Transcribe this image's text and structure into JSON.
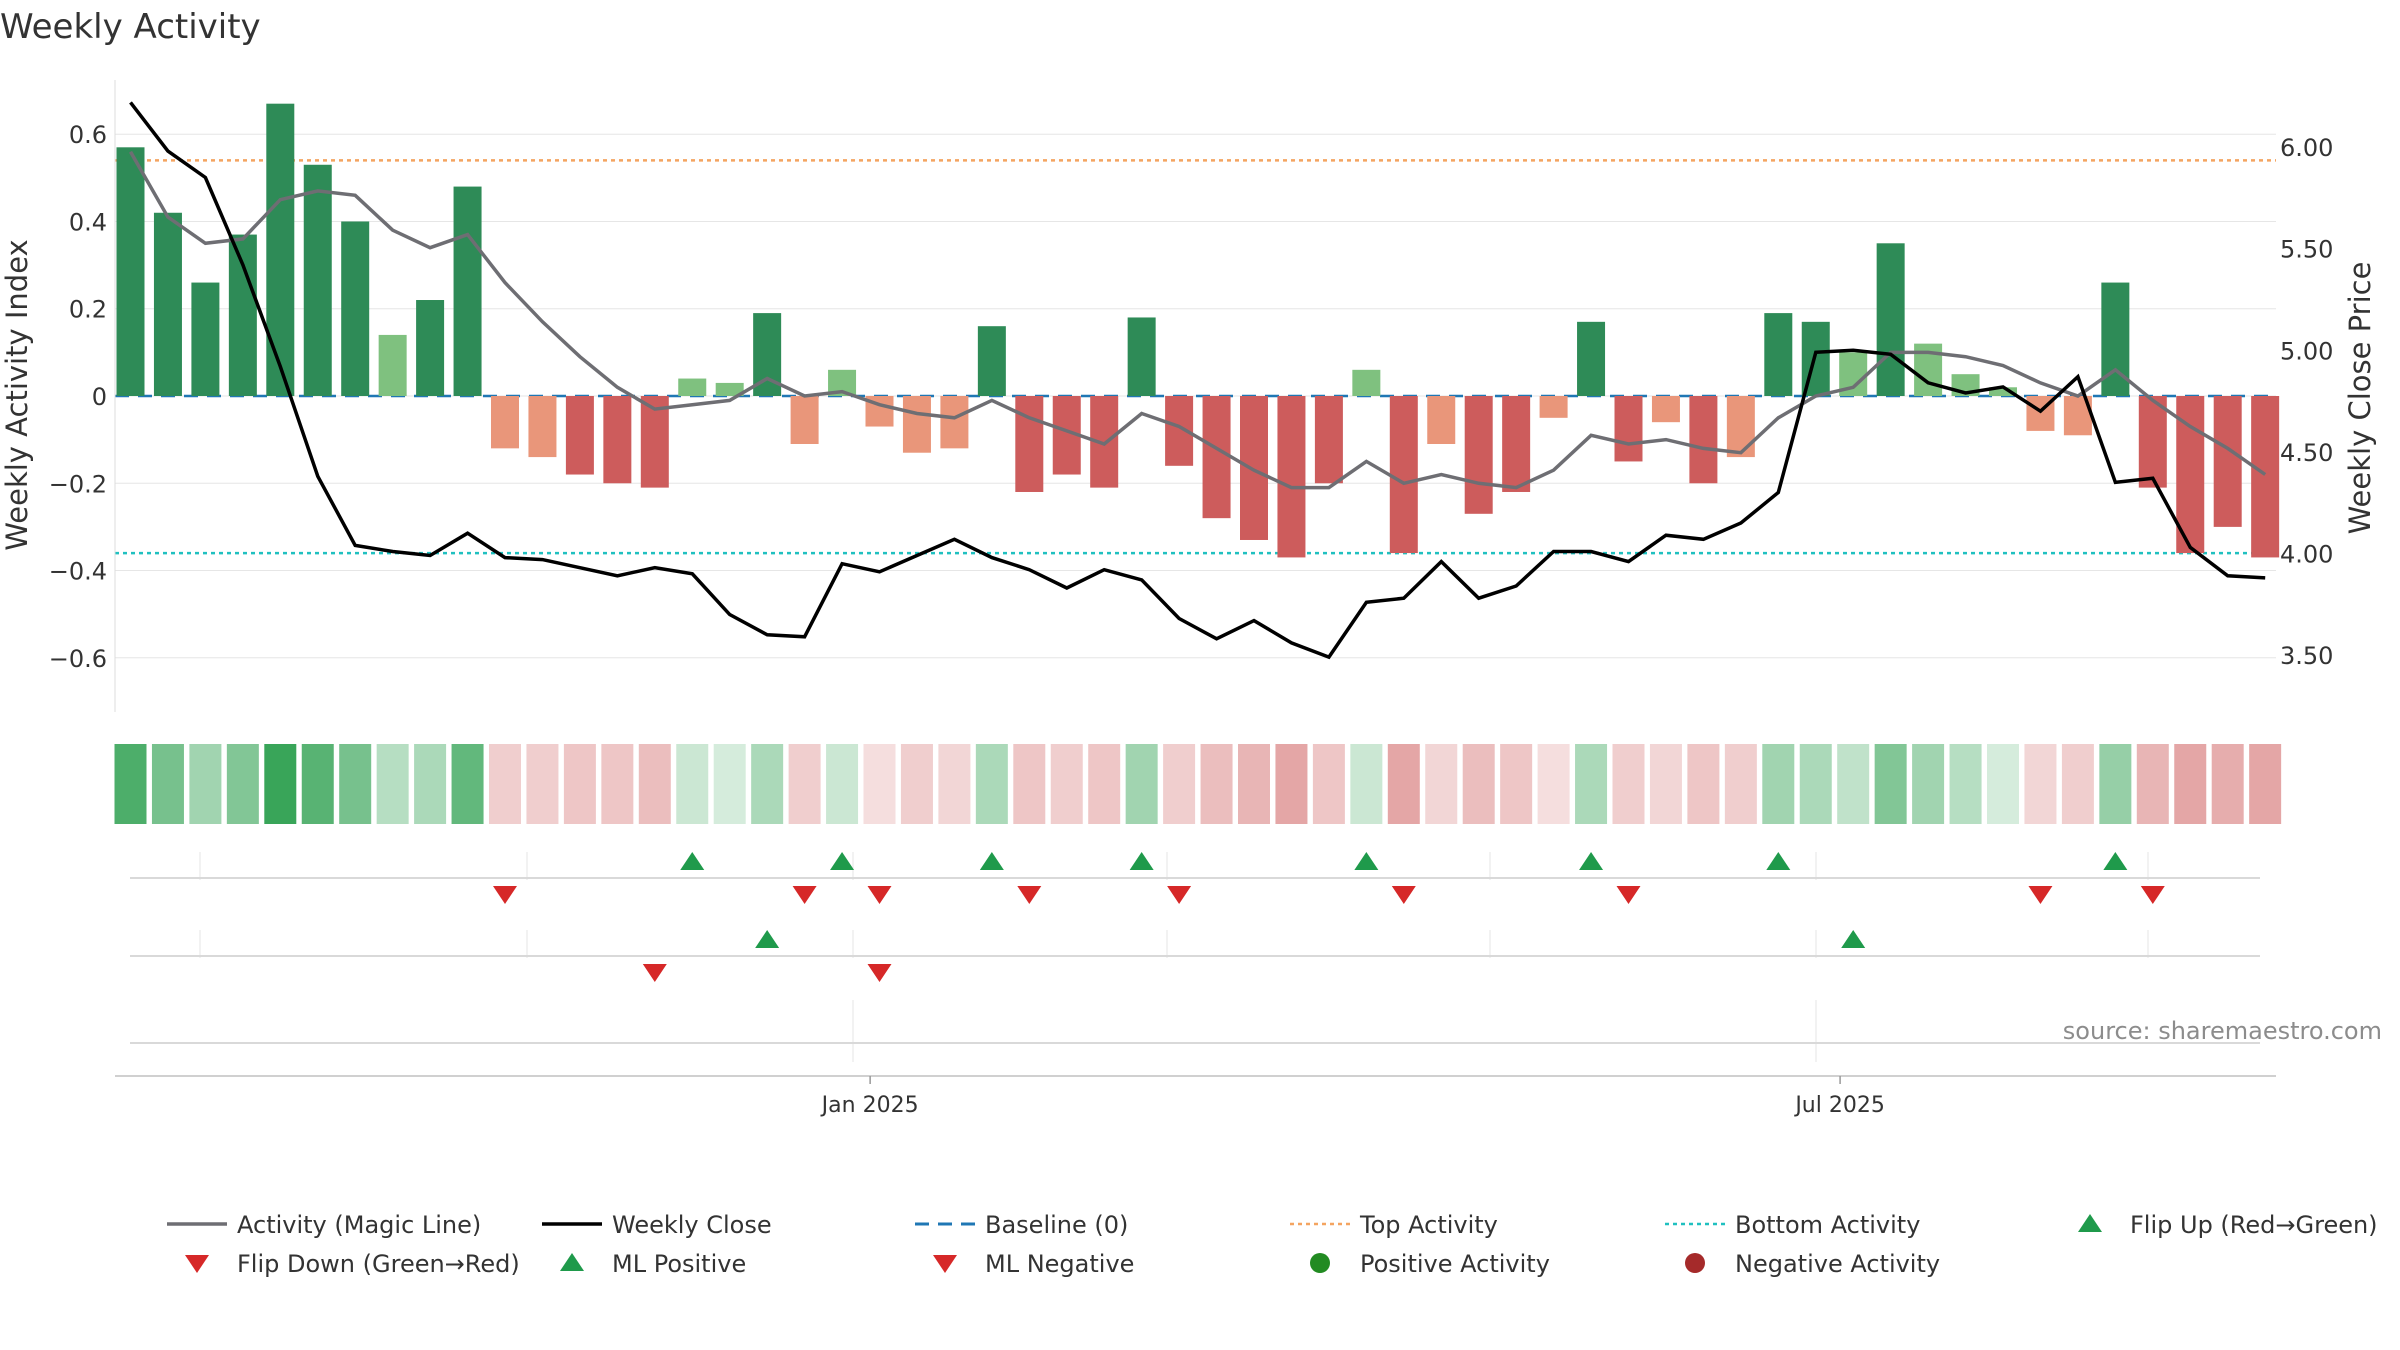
{
  "colors": {
    "strong_green": "#2e8b57",
    "light_green": "#7fc17f",
    "strong_red": "#cd5c5c",
    "light_red": "#e9967a",
    "magic_line": "#6e6e73",
    "close_line": "#000000",
    "baseline": "#1f77b4",
    "top_line": "#f4a460",
    "bottom_line": "#20c0c0",
    "marker_up": "#1f9a4b",
    "marker_down": "#d62828",
    "pos_dot": "#228b22",
    "neg_dot": "#a52a2a"
  },
  "chart_data": {
    "type": "bar",
    "title": "Weekly Activity",
    "ylabel": "Weekly Activity Index",
    "y2label": "Weekly Close Price",
    "ylim": [
      -0.73,
      0.73
    ],
    "y2lim": [
      3.22,
      6.33
    ],
    "yticks": [
      0.6,
      0.4,
      0.2,
      0,
      -0.2,
      -0.4,
      -0.6
    ],
    "ytick_labels": [
      "0.6",
      "0.4",
      "0.2",
      "0",
      "−0.2",
      "−0.4",
      "−0.6"
    ],
    "y2ticks": [
      6.0,
      5.5,
      5.0,
      4.5,
      4.0,
      3.5
    ],
    "y2tick_labels": [
      "6.00",
      "5.50",
      "5.00",
      "4.50",
      "4.00",
      "3.50"
    ],
    "xtick_labels": [
      {
        "label": "Jan 2025",
        "week": 19.75
      },
      {
        "label": "Jul 2025",
        "week": 45.65
      }
    ],
    "top_activity": 0.54,
    "bottom_activity": -0.36,
    "baseline": 0,
    "activity": [
      0.57,
      0.42,
      0.26,
      0.37,
      0.67,
      0.53,
      0.4,
      0.14,
      0.22,
      0.48,
      -0.12,
      -0.14,
      -0.18,
      -0.2,
      -0.21,
      0.04,
      0.03,
      0.19,
      -0.11,
      0.06,
      -0.07,
      -0.13,
      -0.12,
      0.16,
      -0.22,
      -0.18,
      -0.21,
      0.18,
      -0.16,
      -0.28,
      -0.33,
      -0.37,
      -0.2,
      0.06,
      -0.36,
      -0.11,
      -0.27,
      -0.22,
      -0.05,
      0.17,
      -0.15,
      -0.06,
      -0.2,
      -0.14,
      0.19,
      0.17,
      0.1,
      0.35,
      0.12,
      0.05,
      0.02,
      -0.08,
      -0.09,
      0.26,
      -0.21,
      -0.36,
      -0.3,
      -0.37
    ],
    "magic_line": [
      0.56,
      0.41,
      0.35,
      0.36,
      0.45,
      0.47,
      0.46,
      0.38,
      0.34,
      0.37,
      0.26,
      0.17,
      0.09,
      0.02,
      -0.03,
      -0.02,
      -0.01,
      0.04,
      0.0,
      0.01,
      -0.02,
      -0.04,
      -0.05,
      -0.01,
      -0.05,
      -0.08,
      -0.11,
      -0.04,
      -0.07,
      -0.12,
      -0.17,
      -0.21,
      -0.21,
      -0.15,
      -0.2,
      -0.18,
      -0.2,
      -0.21,
      -0.17,
      -0.09,
      -0.11,
      -0.1,
      -0.12,
      -0.13,
      -0.05,
      0.0,
      0.02,
      0.1,
      0.1,
      0.09,
      0.07,
      0.03,
      0.0,
      0.06,
      -0.01,
      -0.07,
      -0.12,
      -0.18
    ],
    "weekly_close": [
      6.22,
      5.98,
      5.85,
      5.42,
      4.92,
      4.38,
      4.04,
      4.01,
      3.99,
      4.1,
      3.98,
      3.97,
      3.93,
      3.89,
      3.93,
      3.9,
      3.7,
      3.6,
      3.59,
      3.95,
      3.91,
      3.99,
      4.07,
      3.98,
      3.92,
      3.83,
      3.92,
      3.87,
      3.68,
      3.58,
      3.67,
      3.56,
      3.49,
      3.76,
      3.78,
      3.96,
      3.78,
      3.84,
      4.01,
      4.01,
      3.96,
      4.09,
      4.07,
      4.15,
      4.3,
      4.99,
      5.0,
      4.98,
      4.84,
      4.79,
      4.82,
      4.7,
      4.87,
      4.35,
      4.37,
      4.03,
      3.89,
      3.88
    ],
    "tile_intensity": [
      0.85,
      0.65,
      0.45,
      0.6,
      0.95,
      0.8,
      0.65,
      0.35,
      0.4,
      0.75,
      0.3,
      0.3,
      0.35,
      0.35,
      0.4,
      0.25,
      0.2,
      0.4,
      0.3,
      0.25,
      0.2,
      0.3,
      0.25,
      0.4,
      0.35,
      0.3,
      0.35,
      0.45,
      0.3,
      0.4,
      0.45,
      0.55,
      0.35,
      0.25,
      0.55,
      0.25,
      0.4,
      0.35,
      0.2,
      0.4,
      0.3,
      0.25,
      0.35,
      0.3,
      0.45,
      0.4,
      0.3,
      0.6,
      0.45,
      0.35,
      0.2,
      0.25,
      0.3,
      0.5,
      0.45,
      0.55,
      0.5,
      0.55
    ],
    "markers": {
      "flip_up": [
        15,
        19,
        23,
        27,
        33,
        39,
        44,
        53
      ],
      "flip_down": [
        10,
        18,
        20,
        24,
        28,
        34,
        40,
        51,
        54
      ],
      "ml_positive": [
        17,
        46
      ],
      "ml_negative": [
        14,
        20
      ]
    },
    "source": "source: sharemaestro.com",
    "legend": [
      {
        "label": "Activity (Magic Line)",
        "kind": "line",
        "color": "magic_line"
      },
      {
        "label": "Weekly Close",
        "kind": "line",
        "color": "close_line"
      },
      {
        "label": "Baseline (0)",
        "kind": "dash",
        "color": "baseline"
      },
      {
        "label": "Top Activity",
        "kind": "dot",
        "color": "top_line"
      },
      {
        "label": "Bottom Activity",
        "kind": "dot",
        "color": "bottom_line"
      },
      {
        "label": "Flip Up (Red→Green)",
        "kind": "tri-up",
        "color": "marker_up"
      },
      {
        "label": "Flip Down (Green→Red)",
        "kind": "tri-down",
        "color": "marker_down"
      },
      {
        "label": "ML Positive",
        "kind": "tri-up",
        "color": "marker_up"
      },
      {
        "label": "ML Negative",
        "kind": "tri-down",
        "color": "marker_down"
      },
      {
        "label": "Positive Activity",
        "kind": "circle",
        "color": "pos_dot"
      },
      {
        "label": "Negative Activity",
        "kind": "circle",
        "color": "neg_dot"
      }
    ]
  }
}
